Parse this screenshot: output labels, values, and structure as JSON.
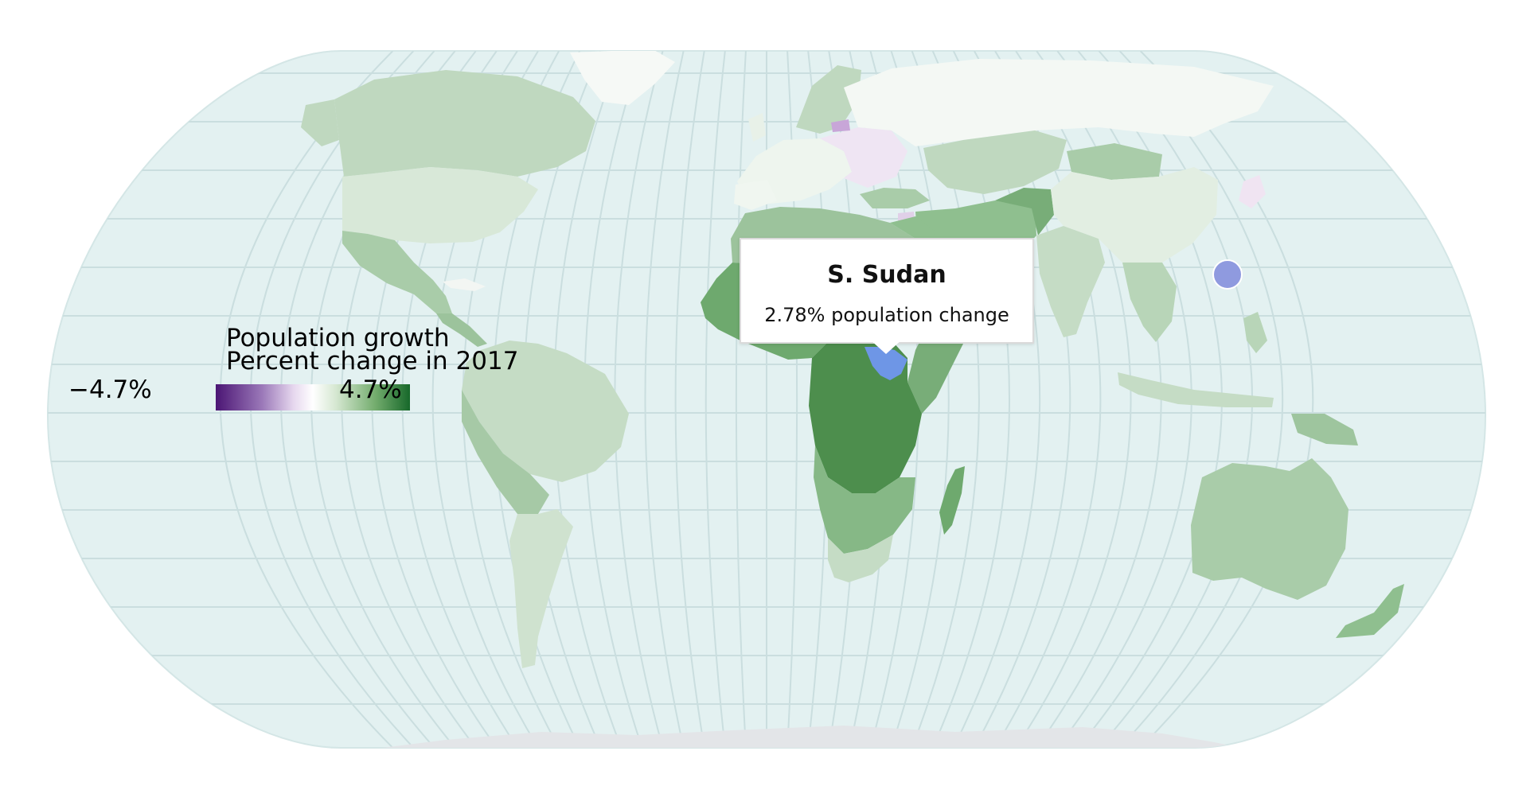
{
  "legend": {
    "title": "Population growth",
    "subtitle": "Percent change in 2017",
    "min_label": "−4.7%",
    "max_label": "4.7%",
    "scale_min": -4.7,
    "scale_max": 4.7,
    "colors": {
      "negative": "#4b1574",
      "neutral": "#ffffff",
      "positive": "#17682a"
    }
  },
  "tooltip": {
    "country": "S. Sudan",
    "value_text": "2.78% population change",
    "value": 2.78
  },
  "map": {
    "ocean_color": "#e3f1f1",
    "graticule_color": "#cadedf",
    "hover_color": "#6e96e6",
    "marker_color": "#8f9adf",
    "antarctica_color": "#e3e5e8"
  }
}
